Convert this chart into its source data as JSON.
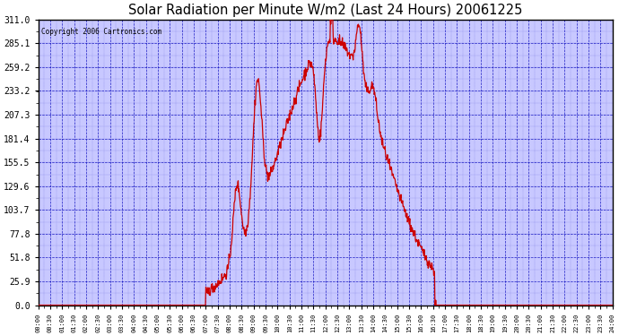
{
  "title": "Solar Radiation per Minute W/m2 (Last 24 Hours) 20061225",
  "copyright": "Copyright 2006 Cartronics.com",
  "line_color": "#cc0000",
  "background_color": "#ffffff",
  "plot_bg_color": "#c8c8ff",
  "grid_color_major": "#0000bb",
  "grid_color_minor": "#0000bb",
  "y_ticks": [
    0.0,
    25.9,
    51.8,
    77.8,
    103.7,
    129.6,
    155.5,
    181.4,
    207.3,
    233.2,
    259.2,
    285.1,
    311.0
  ],
  "y_max": 311.0
}
